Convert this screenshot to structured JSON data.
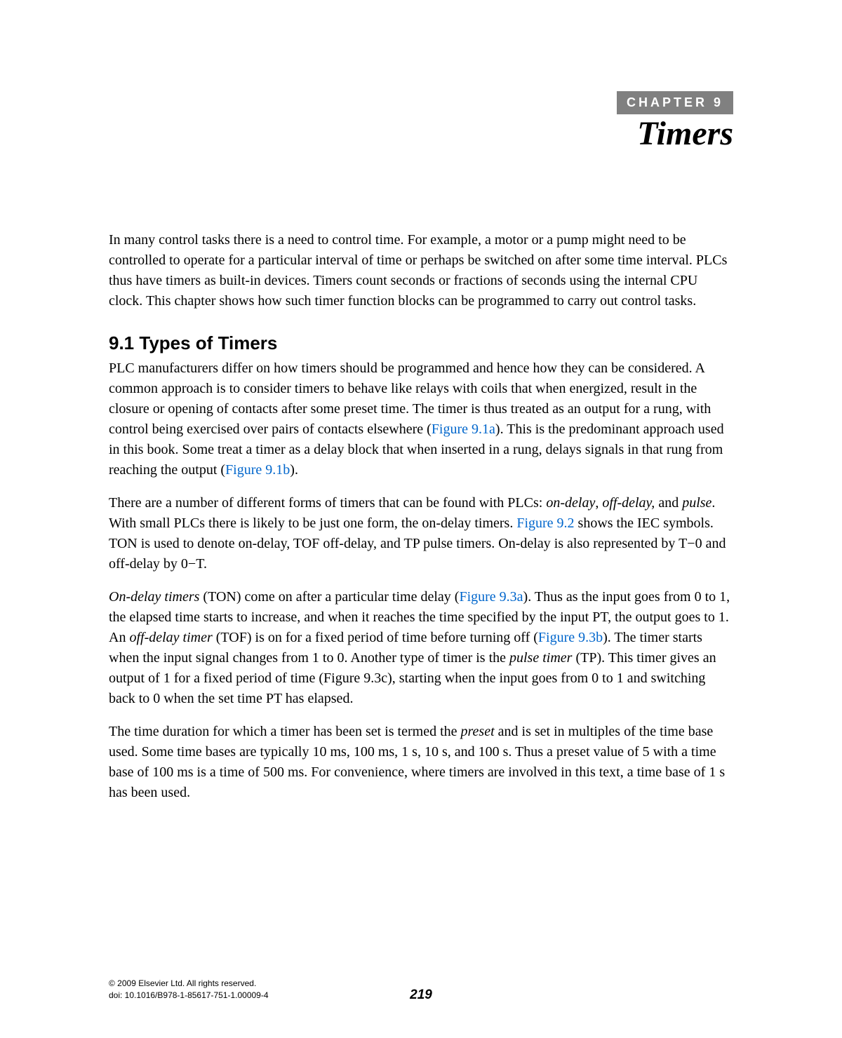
{
  "header": {
    "chapter_label": "CHAPTER 9",
    "chapter_title": "Timers",
    "badge_bg": "#808080",
    "badge_color": "#ffffff"
  },
  "intro": {
    "text": "In many control tasks there is a need to control time. For example, a motor or a pump might need to be controlled to operate for a particular interval of time or perhaps be switched on after some time interval. PLCs thus have timers as built-in devices. Timers count seconds or fractions of seconds using the internal CPU clock. This chapter shows how such timer function blocks can be programmed to carry out control tasks."
  },
  "section_9_1": {
    "heading": "9.1 Types of Timers",
    "para1": {
      "pre1": "PLC manufacturers differ on how timers should be programmed and hence how they can be considered. A common approach is to consider timers to behave like relays with coils that when energized, result in the closure or opening of contacts after some preset time. The timer is thus treated as an output for a rung, with control being exercised over pairs of contacts elsewhere (",
      "link1": "Figure 9.1a",
      "mid1": "). This is the predominant approach used in this book. Some treat a timer as a delay block that when inserted in a rung, delays signals in that rung from reaching the output (",
      "link2": "Figure 9.1b",
      "post1": ")."
    },
    "para2": {
      "pre1": "There are a number of different forms of timers that can be found with PLCs: ",
      "it1": "on-delay",
      "mid1": ", ",
      "it2": "off-delay,",
      "mid2": " and ",
      "it3": "pulse",
      "mid3": ". With small PLCs there is likely to be just one form, the on-delay timers. ",
      "link1": "Figure 9.2",
      "post1": " shows the IEC symbols. TON is used to denote on-delay, TOF off-delay, and TP pulse timers. On-delay is also represented by T−0 and off-delay by 0−T."
    },
    "para3": {
      "it1": "On-delay timers",
      "pre1": " (TON) come on after a particular time delay (",
      "link1": "Figure 9.3a",
      "mid1": "). Thus as the input goes from 0 to 1, the elapsed time starts to increase, and when it reaches the time specified by the input PT, the output goes to 1. An ",
      "it2": "off-delay timer",
      "mid2": " (TOF) is on for a fixed period of time before turning off (",
      "link2": "Figure 9.3b",
      "mid3": "). The timer starts when the input signal changes from 1 to 0. Another type of timer is the ",
      "it3": "pulse timer",
      "post1": " (TP). This timer gives an output of 1 for a fixed period of time (Figure 9.3c), starting when the input goes from 0 to 1 and switching back to 0 when the set time PT has elapsed."
    },
    "para4": {
      "pre1": "The time duration for which a timer has been set is termed the ",
      "it1": "preset",
      "post1": " and is set in multiples of the time base used. Some time bases are typically 10 ms, 100 ms, 1 s, 10 s, and 100 s. Thus a preset value of 5 with a time base of 100 ms is a time of 500 ms. For convenience, where timers are involved in this text, a time base of 1 s has been used."
    }
  },
  "footer": {
    "copyright": "© 2009 Elsevier Ltd. All rights reserved.",
    "doi": "doi: 10.1016/B978-1-85617-751-1.00009-4",
    "page_number": "219"
  },
  "colors": {
    "link_color": "#0066cc",
    "text_color": "#000000",
    "bg_color": "#ffffff"
  },
  "typography": {
    "body_fontsize": 20,
    "heading_fontsize": 26,
    "title_fontsize": 48,
    "badge_fontsize": 18,
    "copyright_fontsize": 12,
    "pagenum_fontsize": 19
  }
}
